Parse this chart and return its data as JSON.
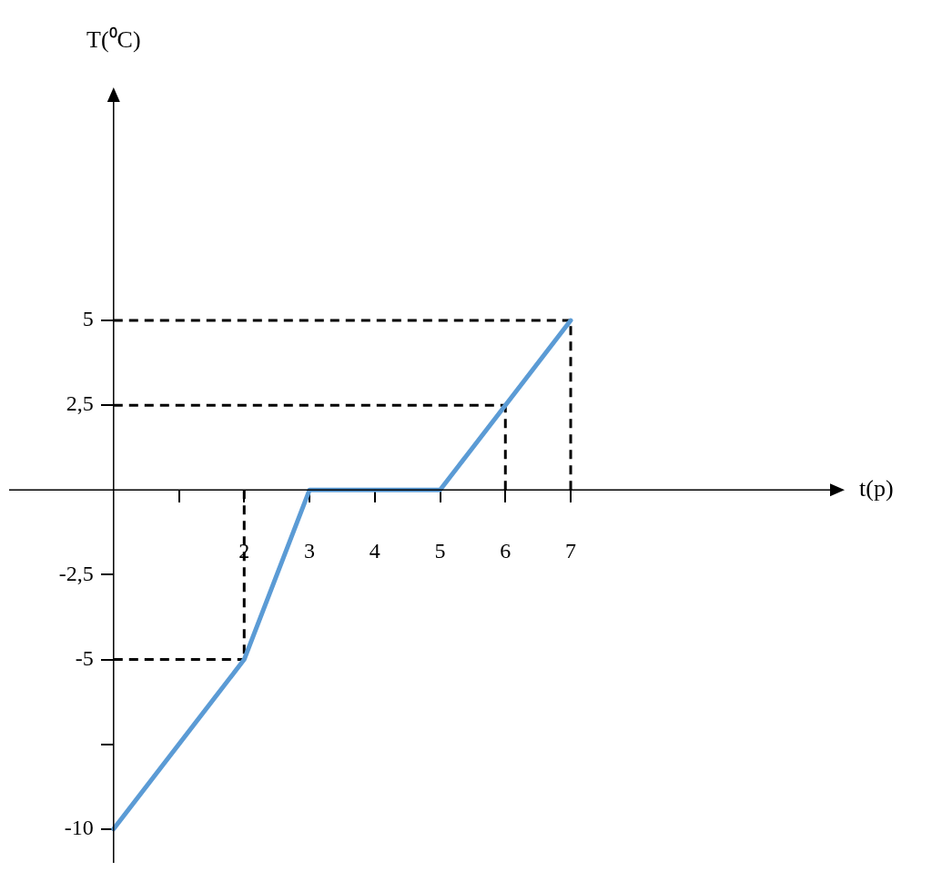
{
  "chart_data": {
    "type": "line",
    "xlabel": "t(p)",
    "ylabel": "T(⁰C)",
    "x": [
      0,
      2,
      3,
      5,
      6,
      7
    ],
    "series": [
      {
        "color": "#5b9bd5",
        "values": [
          -10,
          -5,
          0,
          0,
          2.5,
          5
        ]
      }
    ],
    "xlim": [
      -1.6,
      11
    ],
    "ylim": [
      -11,
      11.5
    ],
    "xticks": [
      {
        "value": 1,
        "label": null
      },
      2,
      3,
      4,
      5,
      6,
      7
    ],
    "yticks": [
      -10,
      {
        "value": -7.5,
        "label": null
      },
      -5,
      {
        "value": -2.5,
        "label": "-2,5"
      },
      {
        "value": 2.5,
        "label": "2,5"
      },
      5
    ],
    "ref_lines": [
      {
        "axis": "x",
        "value": 2,
        "line_style": "dashed",
        "color": "#000000"
      },
      {
        "axis": "x",
        "value": 6,
        "line_style": "dashed",
        "color": "#000000"
      },
      {
        "axis": "x",
        "value": 7,
        "line_style": "dashed",
        "color": "#000000"
      },
      {
        "axis": "y",
        "value": -5,
        "line_style": "dashed",
        "color": "#000000"
      },
      {
        "axis": "y",
        "value": 2.5,
        "line_style": "dashed",
        "color": "#000000"
      },
      {
        "axis": "y",
        "value": 5,
        "line_style": "dashed",
        "color": "#000000"
      }
    ],
    "grid": false,
    "legend": false,
    "marker": "none",
    "line_style": "solid"
  }
}
